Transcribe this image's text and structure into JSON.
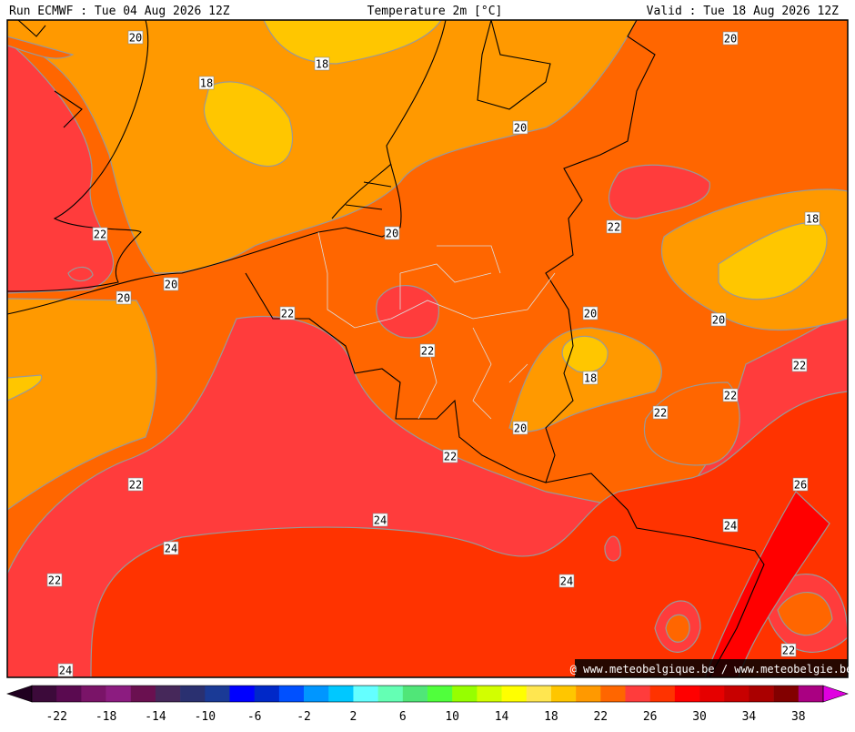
{
  "header": {
    "left": "Run ECMWF : Tue 04 Aug 2026 12Z",
    "center": "Temperature 2m [°C]",
    "right": "Valid : Tue 18 Aug 2026 12Z"
  },
  "map": {
    "contour_labels": [
      20,
      18,
      18,
      20,
      20,
      22,
      20,
      18,
      22,
      20,
      20,
      22,
      20,
      20,
      22,
      22,
      18,
      22,
      22,
      20,
      22,
      22,
      26,
      24,
      24,
      24,
      24,
      22,
      22,
      24
    ],
    "watermark": "@ www.meteobelgique.be / www.meteobelgie.be"
  },
  "colorbar": {
    "colors": [
      "#3c0a3a",
      "#5a0a50",
      "#7a1468",
      "#8c1c80",
      "#6a1050",
      "#46285a",
      "#2a3070",
      "#1a3a96",
      "#0000ff",
      "#0028c8",
      "#0050ff",
      "#0096ff",
      "#00c8ff",
      "#64ffff",
      "#64ffb4",
      "#50e678",
      "#50ff3c",
      "#96ff00",
      "#d2ff00",
      "#ffff00",
      "#ffe650",
      "#ffc600",
      "#ff9900",
      "#ff6600",
      "#ff3c3c",
      "#ff3300",
      "#ff0000",
      "#e60000",
      "#c80000",
      "#aa0000",
      "#820000",
      "#aa0082"
    ],
    "low_color": "#200020",
    "high_color": "#e000e0",
    "labels": [
      -22,
      -18,
      -14,
      -10,
      -6,
      -2,
      2,
      6,
      10,
      14,
      18,
      22,
      26,
      30,
      34,
      38
    ]
  }
}
